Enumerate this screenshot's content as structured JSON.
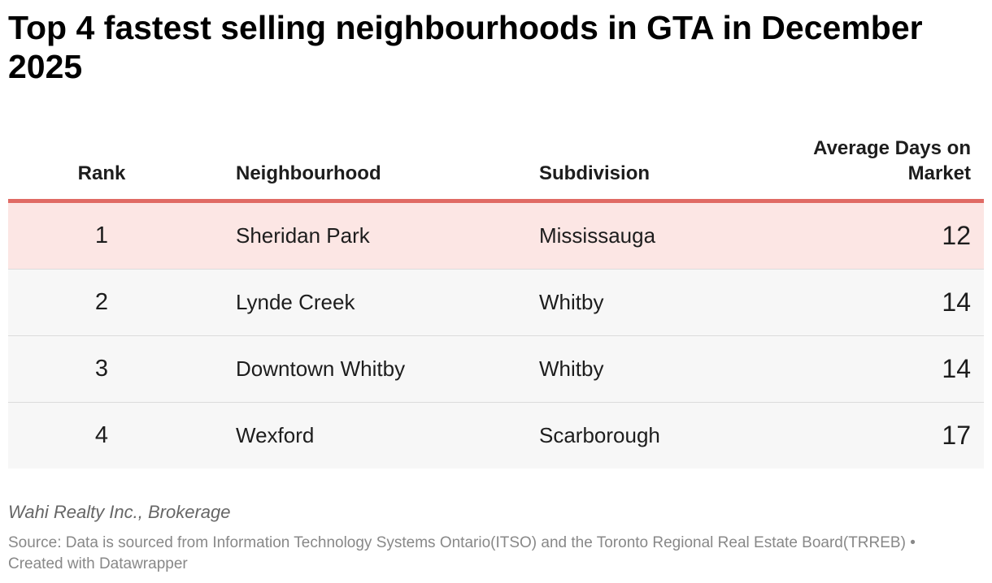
{
  "title": "Top 4 fastest selling neighbourhoods in GTA in December 2025",
  "colors": {
    "header_rule": "#e06a64",
    "highlight_row": "#fce6e4",
    "row_background": "#f7f7f7"
  },
  "chart_data": {
    "type": "table",
    "title": "Top 4 fastest selling neighbourhoods in GTA in December 2025",
    "columns": [
      "Rank",
      "Neighbourhood",
      "Subdivision",
      "Average Days on Market"
    ],
    "rows": [
      {
        "rank": "1",
        "neighbourhood": "Sheridan Park",
        "subdivision": "Mississauga",
        "days": "12",
        "highlighted": true
      },
      {
        "rank": "2",
        "neighbourhood": "Lynde Creek",
        "subdivision": "Whitby",
        "days": "14",
        "highlighted": false
      },
      {
        "rank": "3",
        "neighbourhood": "Downtown Whitby",
        "subdivision": "Whitby",
        "days": "14",
        "highlighted": false
      },
      {
        "rank": "4",
        "neighbourhood": "Wexford",
        "subdivision": "Scarborough",
        "days": "17",
        "highlighted": false
      }
    ]
  },
  "footer": {
    "byline": "Wahi Realty Inc., Brokerage",
    "source": "Source: Data is sourced from Information Technology Systems Ontario(ITSO) and the Toronto Regional Real Estate Board(TRREB) • Created with Datawrapper"
  }
}
